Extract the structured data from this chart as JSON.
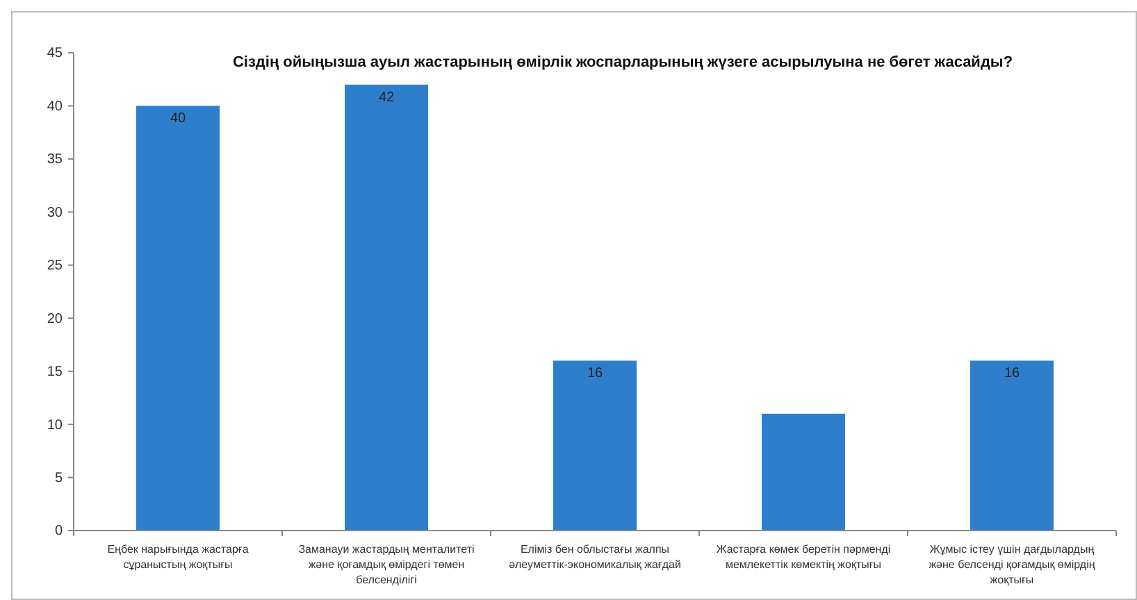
{
  "chart_data": {
    "type": "bar",
    "title": "Сіздің ойыңызша ауыл жастарының өмірлік жоспарларының жүзеге асырылуына не бөгет жасайды?",
    "categories": [
      "Еңбек нарығында жастарға сұраныстың жоқтығы",
      "Заманауи жастардың менталитеті және қоғамдық өмірдегі төмен белсенділігі",
      "Еліміз бен облыстағы жалпы әлеуметтік-экономикалық жағдай",
      "Жастарға көмек беретін пәрменді мемлекеттік көмектің жоқтығы",
      "Жұмыс істеу үшін дағдылардың және белсенді қоғамдық өмірдің жоқтығы"
    ],
    "values": [
      40,
      42,
      16,
      11,
      16
    ],
    "value_labels": [
      "40",
      "42",
      "16",
      null,
      "16"
    ],
    "color": "#2e7fcb",
    "ylim": [
      0,
      45
    ],
    "yticks": [
      0,
      5,
      10,
      15,
      20,
      25,
      30,
      35,
      40,
      45
    ],
    "grid": false
  }
}
